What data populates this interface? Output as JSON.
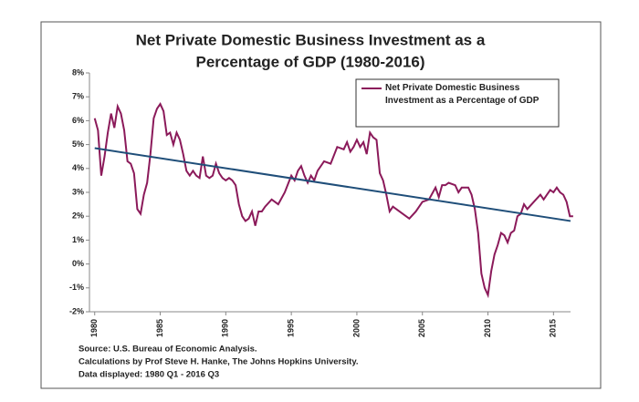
{
  "chart_data": {
    "type": "line",
    "title": [
      "Net Private Domestic Business Investment as a",
      "Percentage of GDP (1980-2016)"
    ],
    "x": [
      1980.0,
      1980.25,
      1980.5,
      1980.75,
      1981.0,
      1981.25,
      1981.5,
      1981.75,
      1982.0,
      1982.25,
      1982.5,
      1982.75,
      1983.0,
      1983.25,
      1983.5,
      1983.75,
      1984.0,
      1984.25,
      1984.5,
      1984.75,
      1985.0,
      1985.25,
      1985.5,
      1985.75,
      1986.0,
      1986.25,
      1986.5,
      1986.75,
      1987.0,
      1987.25,
      1987.5,
      1987.75,
      1988.0,
      1988.25,
      1988.5,
      1988.75,
      1989.0,
      1989.25,
      1989.5,
      1989.75,
      1990.0,
      1990.25,
      1990.5,
      1990.75,
      1991.0,
      1991.25,
      1991.5,
      1991.75,
      1992.0,
      1992.25,
      1992.5,
      1992.75,
      1993.0,
      1993.5,
      1994.0,
      1994.5,
      1995.0,
      1995.25,
      1995.5,
      1995.75,
      1996.0,
      1996.25,
      1996.5,
      1996.75,
      1997.0,
      1997.5,
      1998.0,
      1998.5,
      1999.0,
      1999.25,
      1999.5,
      1999.75,
      2000.0,
      2000.25,
      2000.5,
      2000.75,
      2001.0,
      2001.25,
      2001.5,
      2001.75,
      2002.0,
      2002.25,
      2002.5,
      2002.75,
      2003.0,
      2003.5,
      2004.0,
      2004.5,
      2005.0,
      2005.5,
      2006.0,
      2006.25,
      2006.5,
      2006.75,
      2007.0,
      2007.5,
      2007.75,
      2008.0,
      2008.5,
      2008.75,
      2009.0,
      2009.25,
      2009.5,
      2009.75,
      2010.0,
      2010.25,
      2010.5,
      2010.75,
      2011.0,
      2011.25,
      2011.5,
      2011.75,
      2012.0,
      2012.25,
      2012.5,
      2012.75,
      2013.0,
      2013.5,
      2014.0,
      2014.25,
      2014.5,
      2014.75,
      2015.0,
      2015.25,
      2015.5,
      2015.75,
      2016.0,
      2016.25,
      2016.5
    ],
    "series": [
      {
        "name": "Net Private Domestic Business Investment as a Percentage of GDP",
        "color": "#8b1a5a",
        "values": [
          6.1,
          5.6,
          3.7,
          4.5,
          5.5,
          6.3,
          5.7,
          6.6,
          6.3,
          5.6,
          4.3,
          4.2,
          3.8,
          2.3,
          2.1,
          2.9,
          3.4,
          4.6,
          6.1,
          6.5,
          6.7,
          6.4,
          5.4,
          5.5,
          5.0,
          5.5,
          5.2,
          4.6,
          3.9,
          3.7,
          3.9,
          3.7,
          3.6,
          4.5,
          3.7,
          3.6,
          3.7,
          4.2,
          3.8,
          3.6,
          3.5,
          3.6,
          3.5,
          3.3,
          2.5,
          2.0,
          1.8,
          1.9,
          2.2,
          1.6,
          2.2,
          2.2,
          2.4,
          2.7,
          2.5,
          3.0,
          3.7,
          3.5,
          3.9,
          4.1,
          3.7,
          3.4,
          3.7,
          3.5,
          3.9,
          4.3,
          4.2,
          4.9,
          4.8,
          5.1,
          4.7,
          4.9,
          5.2,
          4.9,
          5.1,
          4.6,
          5.5,
          5.3,
          5.2,
          3.8,
          3.5,
          2.9,
          2.2,
          2.4,
          2.3,
          2.1,
          1.9,
          2.2,
          2.6,
          2.7,
          3.2,
          2.8,
          3.3,
          3.3,
          3.4,
          3.3,
          3.0,
          3.2,
          3.2,
          2.9,
          2.3,
          1.3,
          -0.4,
          -1.0,
          -1.3,
          -0.3,
          0.4,
          0.8,
          1.3,
          1.2,
          0.9,
          1.3,
          1.4,
          2.0,
          2.1,
          2.5,
          2.3,
          2.6,
          2.9,
          2.7,
          2.9,
          3.1,
          3.0,
          3.2,
          3.0,
          2.9,
          2.6,
          2.0,
          2.0
        ]
      }
    ],
    "trendline": {
      "color": "#1f4e79",
      "x": [
        1980,
        2016.3
      ],
      "values": [
        4.85,
        1.8
      ]
    },
    "xlim": [
      1979.6,
      2016.3
    ],
    "xticks": [
      1980,
      1985,
      1990,
      1995,
      2000,
      2005,
      2010,
      2015
    ],
    "ylim": [
      -2,
      8
    ],
    "yticks": [
      {
        "value": -2,
        "label": "-2%"
      },
      {
        "value": -1,
        "label": "-1%"
      },
      {
        "value": 0,
        "label": "0%"
      },
      {
        "value": 1,
        "label": "1%"
      },
      {
        "value": 2,
        "label": "2%"
      },
      {
        "value": 3,
        "label": "3%"
      },
      {
        "value": 4,
        "label": "4%"
      },
      {
        "value": 5,
        "label": "5%"
      },
      {
        "value": 6,
        "label": "6%"
      },
      {
        "value": 7,
        "label": "7%"
      },
      {
        "value": 8,
        "label": "8%"
      }
    ],
    "legend": "upper right",
    "notes": [
      "Source: U.S. Bureau of Economic Analysis.",
      "Calculations by Prof Steve H. Hanke, The Johns Hopkins University.",
      "Data displayed: 1980 Q1 - 2016 Q3"
    ]
  }
}
